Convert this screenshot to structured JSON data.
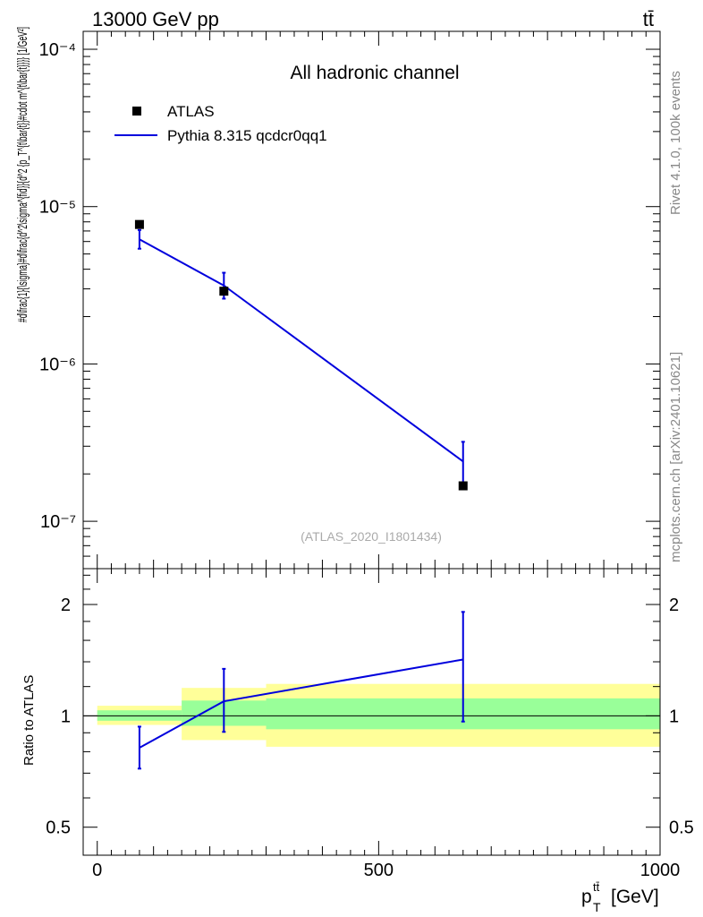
{
  "header": {
    "energy_label": "13000 GeV pp",
    "process_label": "tt̄"
  },
  "side_text": {
    "rivet": "Rivet 4.1.0,  100k events",
    "mcplots": "mcplots.cern.ch [arXiv:2401.10621]"
  },
  "colors": {
    "mc_line": "#0000dd",
    "band_inner": "#99ff99",
    "band_outer": "#ffff99",
    "data_marker": "#000000"
  },
  "chart_data": [
    {
      "type": "scatter",
      "panel": "main",
      "title": "All hadronic channel",
      "ylabel": "#d\\frac{1}{\\sigma}#d\\frac{d^2\\sigma^{fid}}{d^2 {p_T^{t\\bar{t}}#cdot m^{t\\bar{t}}}} [1/GeV²]",
      "yscale": "log",
      "ylim": [
        5e-08,
        0.00013
      ],
      "xlim": [
        -25,
        1000
      ],
      "ytick_labels": [
        "10⁻⁴",
        "10⁻⁵",
        "10⁻⁶",
        "10⁻⁷"
      ],
      "ytick_values": [
        0.0001,
        1e-05,
        1e-06,
        1e-07
      ],
      "watermark": "(ATLAS_2020_I1801434)",
      "legend_position": "top-left",
      "series": [
        {
          "name": "ATLAS",
          "kind": "points",
          "x": [
            75,
            225,
            650
          ],
          "y": [
            7.7e-06,
            2.9e-06,
            1.68e-07
          ]
        },
        {
          "name": "Pythia 8.315 qcdcr0qq1",
          "kind": "line",
          "x": [
            75,
            225,
            650
          ],
          "y": [
            6.2e-06,
            3.15e-06,
            2.4e-07
          ],
          "yerr_low": [
            5.4e-06,
            2.6e-06,
            1.65e-07
          ],
          "yerr_high": [
            7.1e-06,
            3.8e-06,
            3.2e-07
          ]
        }
      ]
    },
    {
      "type": "line",
      "panel": "ratio",
      "ylabel": "Ratio to ATLAS",
      "xlabel": "p_T^{tt̄} [GeV]",
      "x_axis_label_main": "p",
      "x_axis_label_sub": "T",
      "x_axis_label_sup": "tt̄",
      "x_axis_label_unit": "[GeV]",
      "yscale": "log",
      "ylim": [
        0.42,
        2.5
      ],
      "xlim": [
        -25,
        1000
      ],
      "xtick_values": [
        0,
        500,
        1000
      ],
      "xtick_labels": [
        "0",
        "500",
        "1000"
      ],
      "ytick_values": [
        0.5,
        1,
        2
      ],
      "ytick_labels": [
        "0.5",
        "1",
        "2"
      ],
      "bands": [
        {
          "x_low": 0,
          "x_high": 150,
          "inner_low": 0.97,
          "inner_high": 1.035,
          "outer_low": 0.945,
          "outer_high": 1.065
        },
        {
          "x_low": 150,
          "x_high": 300,
          "inner_low": 0.94,
          "inner_high": 1.1,
          "outer_low": 0.86,
          "outer_high": 1.19
        },
        {
          "x_low": 300,
          "x_high": 1000,
          "inner_low": 0.92,
          "inner_high": 1.115,
          "outer_low": 0.825,
          "outer_high": 1.22
        }
      ],
      "series": [
        {
          "name": "Pythia 8.315 qcdcr0qq1",
          "x": [
            75,
            225,
            650
          ],
          "y": [
            0.82,
            1.095,
            1.42
          ],
          "yerr_low": [
            0.72,
            0.905,
            0.965
          ],
          "yerr_high": [
            0.935,
            1.34,
            1.91
          ]
        }
      ]
    }
  ]
}
